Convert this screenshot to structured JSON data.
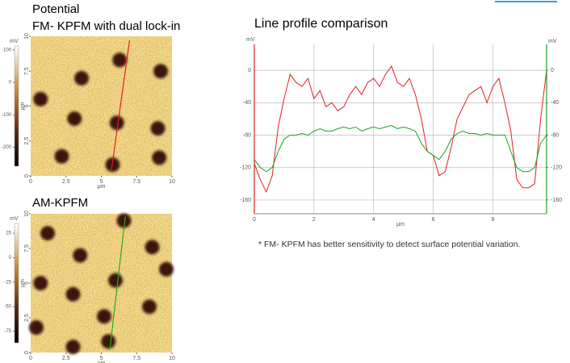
{
  "slide": {
    "footnote": "* FM- KPFM has better sensitivity to detect surface potential variation."
  },
  "chart_data": [
    {
      "type": "image",
      "title": "Potential",
      "subtitle": "FM- KPFM with dual lock-in",
      "xlim": [
        0,
        10
      ],
      "xticks": [
        0,
        2.5,
        5,
        7.5,
        10
      ],
      "ylim": [
        0,
        10
      ],
      "yticks": [
        0,
        2.5,
        5,
        7.5,
        10
      ],
      "x_label": "μm",
      "y_label": "μm",
      "profile_color": "#e02020",
      "colorbar": {
        "label": "mV",
        "lim": [
          -258,
          112
        ],
        "ticks": [
          100,
          0,
          -100,
          -200
        ]
      }
    },
    {
      "type": "image",
      "title": "AM-KPFM",
      "xlim": [
        0,
        10
      ],
      "xticks": [
        0,
        2.5,
        5,
        7.5,
        10
      ],
      "ylim": [
        0,
        10
      ],
      "yticks": [
        0,
        2.5,
        5,
        7.5,
        10
      ],
      "x_label": "μm",
      "y_label": "μm",
      "profile_color": "#20b020",
      "colorbar": {
        "label": "mV",
        "lim": [
          -87,
          35
        ],
        "ticks": [
          25,
          0,
          -25,
          -50,
          -75
        ]
      }
    },
    {
      "type": "line",
      "title": "Line profile comparison",
      "x_label": "μm",
      "y_label": "mV",
      "y2_label": "mV",
      "xlim": [
        0,
        9.8
      ],
      "xticks": [
        0,
        2,
        4,
        6,
        8
      ],
      "ylim": [
        -177,
        32
      ],
      "yticks": [
        0,
        -40,
        -80,
        -120,
        -160
      ],
      "y2lim": [
        -177,
        32
      ],
      "y2ticks": [
        0,
        -40,
        -80,
        -120,
        -160
      ],
      "grid": true,
      "x": [
        0,
        0.2,
        0.4,
        0.6,
        0.8,
        1.0,
        1.2,
        1.4,
        1.6,
        1.8,
        2.0,
        2.2,
        2.4,
        2.6,
        2.8,
        3.0,
        3.2,
        3.4,
        3.6,
        3.8,
        4.0,
        4.2,
        4.4,
        4.6,
        4.8,
        5.0,
        5.2,
        5.4,
        5.6,
        5.8,
        6.0,
        6.2,
        6.4,
        6.6,
        6.8,
        7.0,
        7.2,
        7.4,
        7.6,
        7.8,
        8.0,
        8.2,
        8.4,
        8.6,
        8.8,
        9.0,
        9.2,
        9.4,
        9.6,
        9.8
      ],
      "series": [
        {
          "color": "#e02020",
          "values": [
            -115,
            -135,
            -150,
            -130,
            -70,
            -35,
            -5,
            -15,
            -20,
            -10,
            -35,
            -25,
            -45,
            -40,
            -50,
            -45,
            -30,
            -20,
            -30,
            -15,
            -10,
            -20,
            -5,
            5,
            -15,
            -20,
            -10,
            -30,
            -60,
            -100,
            -105,
            -130,
            -125,
            -95,
            -60,
            -45,
            -30,
            -25,
            -20,
            -40,
            -20,
            -10,
            -40,
            -75,
            -135,
            -145,
            -145,
            -140,
            -60,
            0
          ]
        },
        {
          "color": "#20a020",
          "axis": "y2",
          "values": [
            -110,
            -120,
            -125,
            -120,
            -100,
            -85,
            -80,
            -80,
            -78,
            -80,
            -75,
            -72,
            -75,
            -75,
            -72,
            -70,
            -72,
            -70,
            -75,
            -72,
            -70,
            -72,
            -70,
            -68,
            -72,
            -70,
            -72,
            -75,
            -90,
            -100,
            -105,
            -110,
            -100,
            -85,
            -78,
            -75,
            -78,
            -78,
            -80,
            -78,
            -80,
            -80,
            -80,
            -100,
            -120,
            -125,
            -125,
            -120,
            -90,
            -80
          ]
        }
      ]
    }
  ]
}
